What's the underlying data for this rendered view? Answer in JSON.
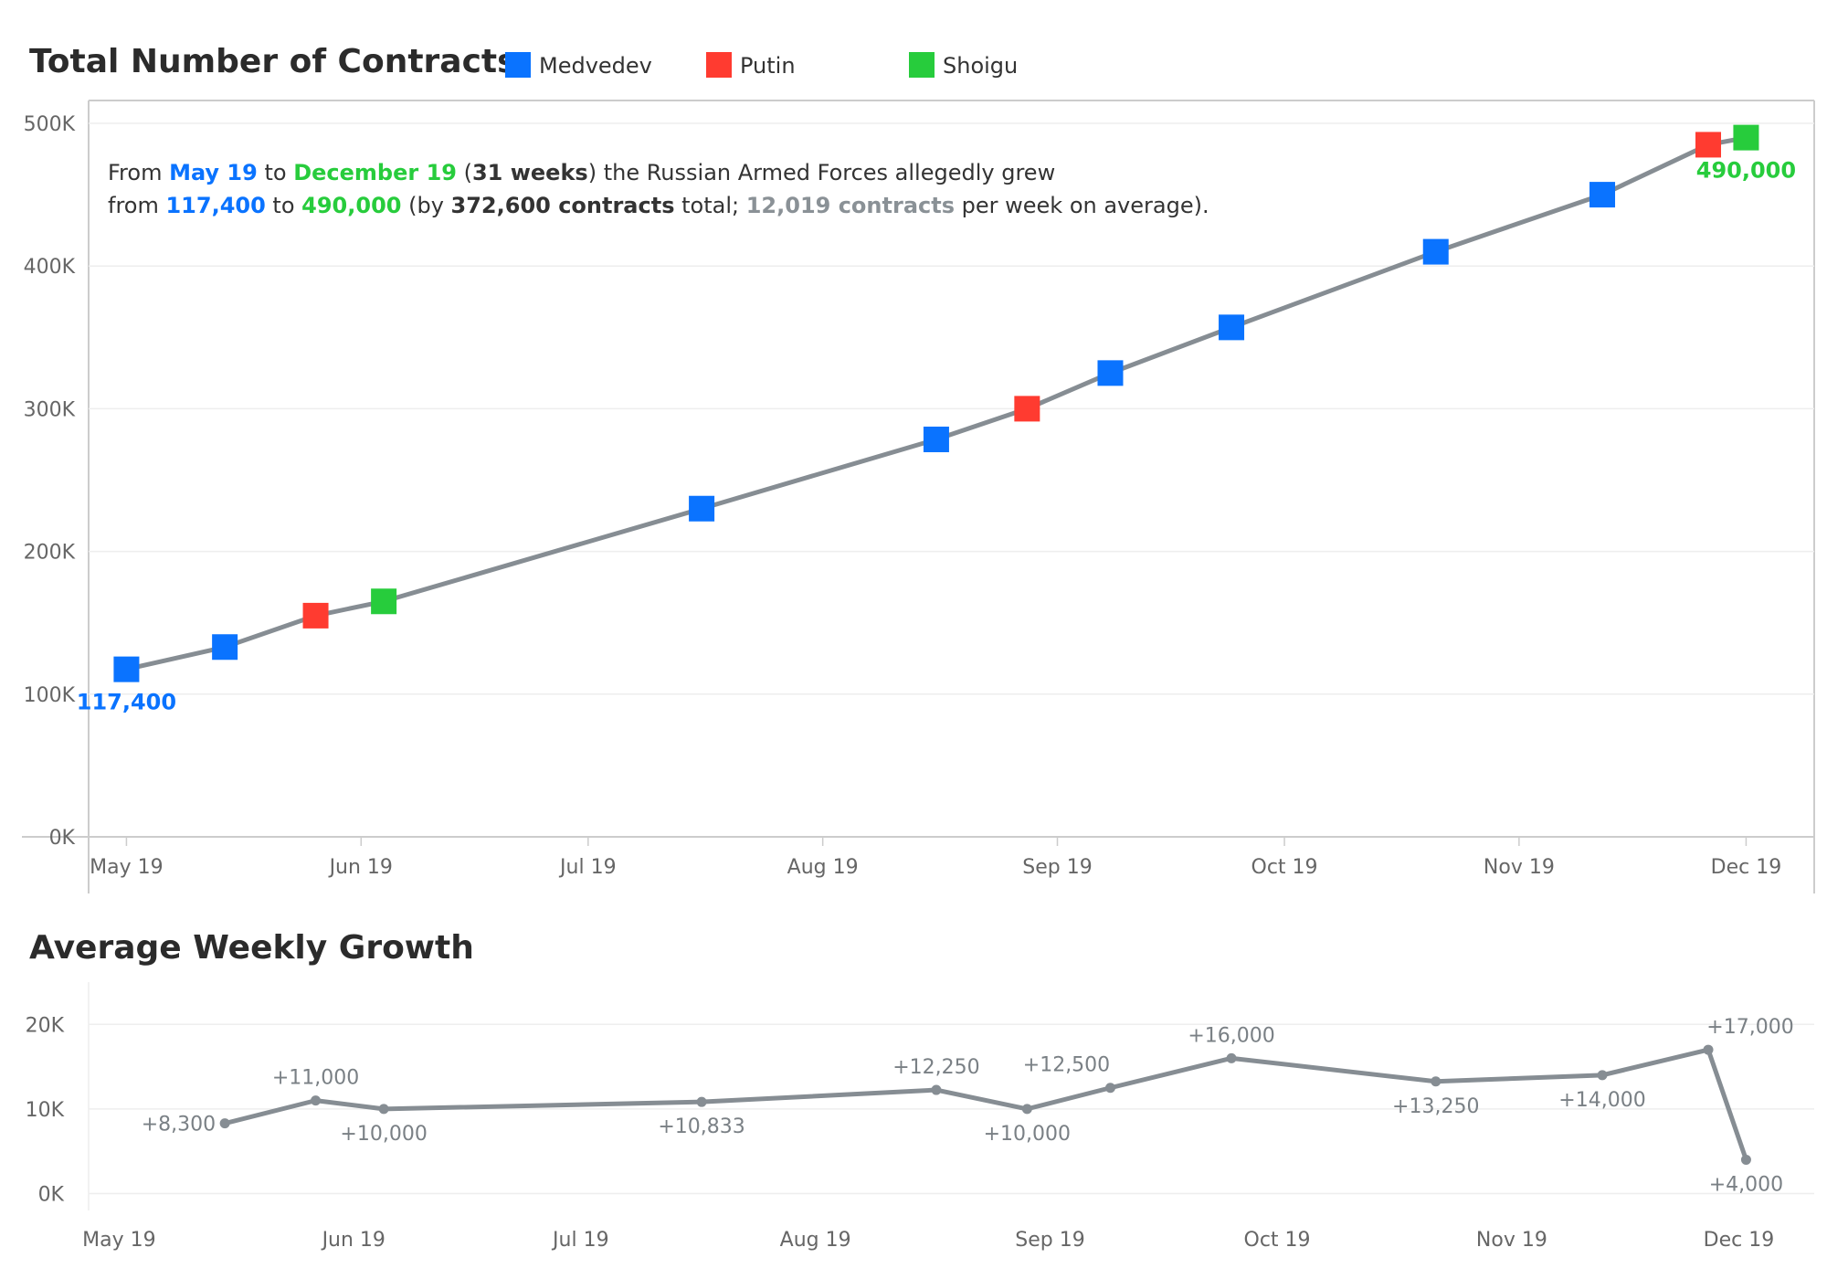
{
  "top_chart": {
    "title": "Total Number of Contracts",
    "legend": [
      {
        "label": "Medvedev",
        "color": "#0a73ff"
      },
      {
        "label": "Putin",
        "color": "#ff3b30"
      },
      {
        "label": "Shoigu",
        "color": "#27cc3c"
      }
    ],
    "annotation": {
      "line1": {
        "t1": "From ",
        "start_date": "May 19",
        "t2": " to ",
        "end_date": "December 19",
        "t3": " (",
        "weeks": "31 weeks",
        "t4": ") the Russian Armed Forces allegedly grew"
      },
      "line2": {
        "t1": "from ",
        "start_value": "117,400",
        "t2": " to ",
        "end_value": "490,000",
        "t3": " (by ",
        "total": "372,600 contracts",
        "t4": " total; ",
        "avg": "12,019 contracts",
        "t5": " per week on average)."
      },
      "colors": {
        "start": "#0a73ff",
        "end": "#27cc3c",
        "avg": "#8a9196"
      }
    },
    "first_label": "117,400",
    "last_label": "490,000"
  },
  "bottom_chart": {
    "title": "Average Weekly Growth"
  },
  "chart_data": [
    {
      "type": "line",
      "title": "Total Number of Contracts",
      "x_unit": "date",
      "x_ticks": [
        {
          "label": "May 19",
          "date": "2019-05-01"
        },
        {
          "label": "Jun 19",
          "date": "2019-06-01"
        },
        {
          "label": "Jul 19",
          "date": "2019-07-01"
        },
        {
          "label": "Aug 19",
          "date": "2019-08-01"
        },
        {
          "label": "Sep 19",
          "date": "2019-09-01"
        },
        {
          "label": "Oct 19",
          "date": "2019-10-01"
        },
        {
          "label": "Nov 19",
          "date": "2019-11-01"
        },
        {
          "label": "Dec 19",
          "date": "2019-12-01"
        }
      ],
      "y_ticks": [
        "0K",
        "100K",
        "200K",
        "300K",
        "400K",
        "500K"
      ],
      "ylim": [
        0,
        500000
      ],
      "xlim": [
        "2019-04-26",
        "2019-12-10"
      ],
      "grid": true,
      "legend_position": "top",
      "line_color": "#868d93",
      "points": [
        {
          "date": "2019-05-01",
          "value": 117400,
          "speaker": "Medvedev"
        },
        {
          "date": "2019-05-14",
          "value": 133000,
          "speaker": "Medvedev"
        },
        {
          "date": "2019-05-26",
          "value": 155000,
          "speaker": "Putin"
        },
        {
          "date": "2019-06-04",
          "value": 165000,
          "speaker": "Shoigu"
        },
        {
          "date": "2019-07-16",
          "value": 230000,
          "speaker": "Medvedev"
        },
        {
          "date": "2019-08-16",
          "value": 278500,
          "speaker": "Medvedev"
        },
        {
          "date": "2019-08-28",
          "value": 300000,
          "speaker": "Putin"
        },
        {
          "date": "2019-09-08",
          "value": 325000,
          "speaker": "Medvedev"
        },
        {
          "date": "2019-09-24",
          "value": 357000,
          "speaker": "Medvedev"
        },
        {
          "date": "2019-10-21",
          "value": 410000,
          "speaker": "Medvedev"
        },
        {
          "date": "2019-11-12",
          "value": 450000,
          "speaker": "Medvedev"
        },
        {
          "date": "2019-11-26",
          "value": 485000,
          "speaker": "Putin"
        },
        {
          "date": "2019-12-01",
          "value": 490000,
          "speaker": "Shoigu"
        }
      ]
    },
    {
      "type": "line",
      "title": "Average Weekly Growth",
      "x_unit": "date",
      "x_ticks": [
        {
          "label": "May 19",
          "date": "2019-05-01"
        },
        {
          "label": "Jun 19",
          "date": "2019-06-01"
        },
        {
          "label": "Jul 19",
          "date": "2019-07-01"
        },
        {
          "label": "Aug 19",
          "date": "2019-08-01"
        },
        {
          "label": "Sep 19",
          "date": "2019-09-01"
        },
        {
          "label": "Oct 19",
          "date": "2019-10-01"
        },
        {
          "label": "Nov 19",
          "date": "2019-11-01"
        },
        {
          "label": "Dec 19",
          "date": "2019-12-01"
        }
      ],
      "y_ticks": [
        "0K",
        "10K",
        "20K"
      ],
      "ylim": [
        -2000,
        25000
      ],
      "xlim": [
        "2019-04-26",
        "2019-12-10"
      ],
      "grid": true,
      "line_color": "#868d93",
      "points": [
        {
          "date": "2019-05-14",
          "value": 8300,
          "label": "+8,300",
          "label_pos": "left"
        },
        {
          "date": "2019-05-26",
          "value": 11000,
          "label": "+11,000",
          "label_pos": "above"
        },
        {
          "date": "2019-06-04",
          "value": 10000,
          "label": "+10,000",
          "label_pos": "below"
        },
        {
          "date": "2019-07-16",
          "value": 10833,
          "label": "+10,833",
          "label_pos": "below"
        },
        {
          "date": "2019-08-16",
          "value": 12250,
          "label": "+12,250",
          "label_pos": "above"
        },
        {
          "date": "2019-08-28",
          "value": 10000,
          "label": "+10,000",
          "label_pos": "below"
        },
        {
          "date": "2019-09-08",
          "value": 12500,
          "label": "+12,500",
          "label_pos": "above-left"
        },
        {
          "date": "2019-09-24",
          "value": 16000,
          "label": "+16,000",
          "label_pos": "above"
        },
        {
          "date": "2019-10-21",
          "value": 13250,
          "label": "+13,250",
          "label_pos": "below"
        },
        {
          "date": "2019-11-12",
          "value": 14000,
          "label": "+14,000",
          "label_pos": "below"
        },
        {
          "date": "2019-11-26",
          "value": 17000,
          "label": "+17,000",
          "label_pos": "above-right"
        },
        {
          "date": "2019-12-01",
          "value": 4000,
          "label": "+4,000",
          "label_pos": "below"
        }
      ]
    }
  ]
}
